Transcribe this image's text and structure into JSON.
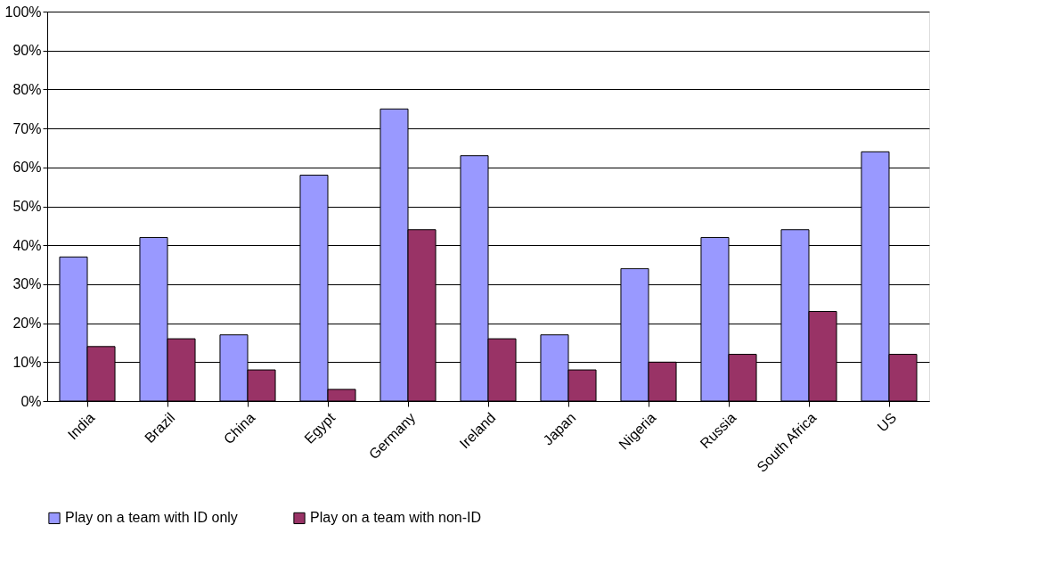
{
  "chart_data": {
    "type": "bar",
    "categories": [
      "India",
      "Brazil",
      "China",
      "Egypt",
      "Germany",
      "Ireland",
      "Japan",
      "Nigeria",
      "Russia",
      "South Africa",
      "US"
    ],
    "series": [
      {
        "name": "Play on a team with ID only",
        "color": "#9999ff",
        "values": [
          37,
          42,
          17,
          58,
          75,
          63,
          17,
          34,
          42,
          44,
          64
        ]
      },
      {
        "name": "Play on a team with non-ID",
        "color": "#993366",
        "values": [
          14,
          16,
          8,
          3,
          44,
          16,
          8,
          10,
          12,
          23,
          12
        ]
      }
    ],
    "ylim": [
      0,
      100
    ],
    "yticks": [
      {
        "value": 0,
        "label": "0%"
      },
      {
        "value": 10,
        "label": "10%"
      },
      {
        "value": 20,
        "label": "20%"
      },
      {
        "value": 30,
        "label": "30%"
      },
      {
        "value": 40,
        "label": "40%"
      },
      {
        "value": 50,
        "label": "50%"
      },
      {
        "value": 60,
        "label": "60%"
      },
      {
        "value": 70,
        "label": "70%"
      },
      {
        "value": 80,
        "label": "80%"
      },
      {
        "value": 90,
        "label": "90%"
      },
      {
        "value": 100,
        "label": "100%"
      }
    ],
    "grid": "y",
    "legend": "bottom"
  }
}
